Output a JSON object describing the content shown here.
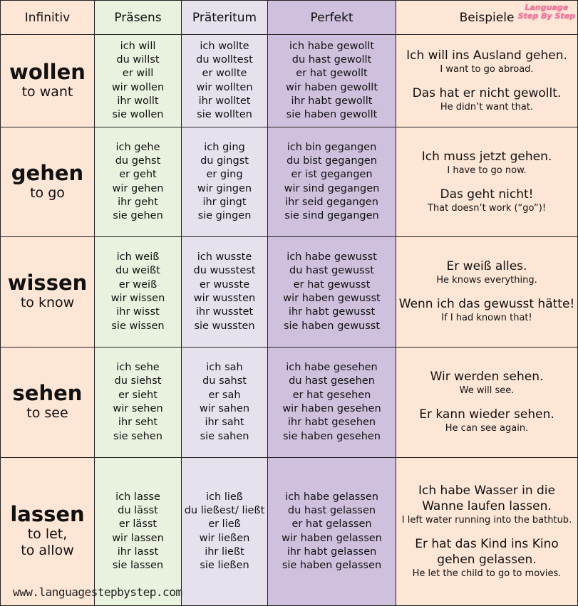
{
  "headers": [
    "Infinitiv",
    "Präsens",
    "Präteritum",
    "Perfekt",
    "Beispiele"
  ],
  "logo": "Language Step By Step",
  "website": "www.languagestepbystep.com",
  "colors": {
    "infinitiv": "#fde6d6",
    "praesens": "#e9f1df",
    "praeteritum": "#e7e1ee",
    "perfekt": "#cfc1de",
    "beispiele": "#fde6d6"
  },
  "rows": [
    {
      "verb": "wollen",
      "translation": "to want",
      "praesens": [
        "ich will",
        "du willst",
        "er will",
        "wir wollen",
        "ihr wollt",
        "sie wollen"
      ],
      "praeteritum": [
        "ich wollte",
        "du wolltest",
        "er wollte",
        "wir wollten",
        "ihr wolltet",
        "sie wollten"
      ],
      "perfekt": [
        "ich habe gewollt",
        "du hast gewollt",
        "er hat gewollt",
        "wir haben gewollt",
        "ihr habt gewollt",
        "sie haben gewollt"
      ],
      "examples": [
        {
          "de": "Ich will ins Ausland gehen.",
          "en": "I want to go abroad."
        },
        {
          "de": "Das hat er nicht gewollt.",
          "en": "He didn’t want that."
        }
      ]
    },
    {
      "verb": "gehen",
      "translation": "to go",
      "praesens": [
        "ich gehe",
        "du gehst",
        "er geht",
        "wir gehen",
        "ihr geht",
        "sie gehen"
      ],
      "praeteritum": [
        "ich ging",
        "du gingst",
        "er ging",
        "wir gingen",
        "ihr gingt",
        "sie gingen"
      ],
      "perfekt": [
        "ich bin gegangen",
        "du bist gegangen",
        "er ist gegangen",
        "wir sind gegangen",
        "ihr seid gegangen",
        "sie sind gegangen"
      ],
      "examples": [
        {
          "de": "Ich muss jetzt gehen.",
          "en": "I have to go now."
        },
        {
          "de": "Das geht nicht!",
          "en": "That doesn’t work (“go”)!"
        }
      ]
    },
    {
      "verb": "wissen",
      "translation": "to know",
      "praesens": [
        "ich weiß",
        "du weißt",
        "er weiß",
        "wir wissen",
        "ihr wisst",
        "sie wissen"
      ],
      "praeteritum": [
        "ich wusste",
        "du wusstest",
        "er wusste",
        "wir wussten",
        "ihr wusstet",
        "sie wussten"
      ],
      "perfekt": [
        "ich habe gewusst",
        "du hast gewusst",
        "er hat gewusst",
        "wir haben gewusst",
        "ihr habt gewusst",
        "sie haben gewusst"
      ],
      "examples": [
        {
          "de": "Er weiß alles.",
          "en": "He knows everything."
        },
        {
          "de": "Wenn ich das gewusst hätte!",
          "en": "If I had known that!"
        }
      ]
    },
    {
      "verb": "sehen",
      "translation": "to see",
      "praesens": [
        "ich sehe",
        "du siehst",
        "er sieht",
        "wir sehen",
        "ihr seht",
        "sie sehen"
      ],
      "praeteritum": [
        "ich sah",
        "du sahst",
        "er sah",
        "wir sahen",
        "ihr saht",
        "sie sahen"
      ],
      "perfekt": [
        "ich habe gesehen",
        "du hast gesehen",
        "er hat gesehen",
        "wir haben gesehen",
        "ihr habt gesehen",
        "sie haben gesehen"
      ],
      "examples": [
        {
          "de": "Wir werden sehen.",
          "en": "We will see."
        },
        {
          "de": "Er kann wieder sehen.",
          "en": "He can see again."
        }
      ]
    },
    {
      "verb": "lassen",
      "translation": "to let, to allow",
      "praesens": [
        "ich lasse",
        "du lässt",
        "er lässt",
        "wir lassen",
        "ihr lasst",
        "sie lassen"
      ],
      "praeteritum": [
        "ich ließ",
        "du ließest/ ließt",
        "er ließ",
        "wir ließen",
        "ihr ließt",
        "sie ließen"
      ],
      "perfekt": [
        "ich habe gelassen",
        "du hast gelassen",
        "er hat gelassen",
        "wir haben gelassen",
        "ihr habt gelassen",
        "sie haben gelassen"
      ],
      "examples": [
        {
          "de": "Ich habe Wasser in die Wanne laufen lassen.",
          "en": "I left water running into the bathtub."
        },
        {
          "de": "Er hat das Kind ins Kino gehen gelassen.",
          "en": "He let the child to go to movies."
        }
      ]
    }
  ]
}
